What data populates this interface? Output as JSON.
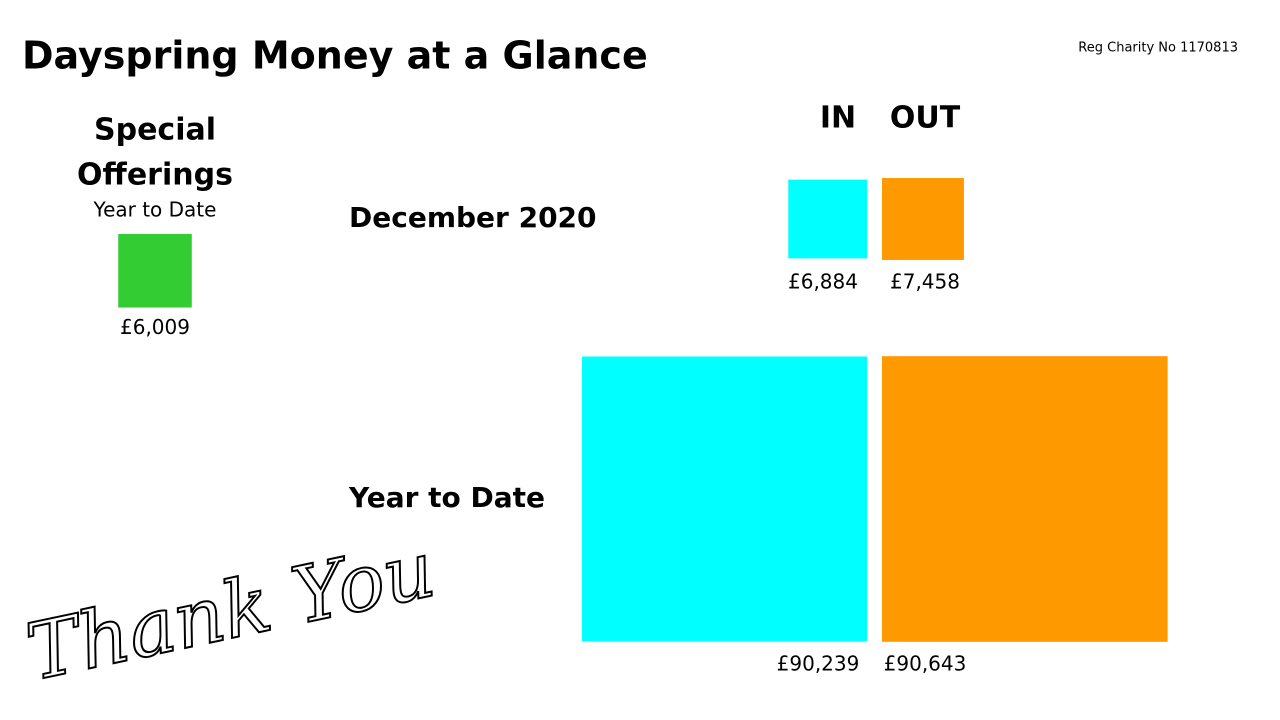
{
  "header": {
    "title": "Dayspring Money at a Glance",
    "charity": "Reg Charity No 1170813"
  },
  "special_offerings": {
    "title_lines": [
      "Special",
      "Offerings"
    ],
    "subtitle": "Year to Date",
    "value": 6009,
    "value_label": "£6,009",
    "color": "#33cc33"
  },
  "columns": [
    {
      "name": "IN",
      "color": "#00ffff"
    },
    {
      "name": "OUT",
      "color": "#ff9900"
    }
  ],
  "rows": [
    {
      "label": "December 2020",
      "values": [
        6884,
        7458
      ],
      "value_labels": [
        "£6,884",
        "£7,458"
      ]
    },
    {
      "label": "Year to Date",
      "values": [
        90239,
        90643
      ],
      "value_labels": [
        "£90,239",
        "£90,643"
      ]
    }
  ],
  "footer": {
    "note": "Thank You"
  }
}
